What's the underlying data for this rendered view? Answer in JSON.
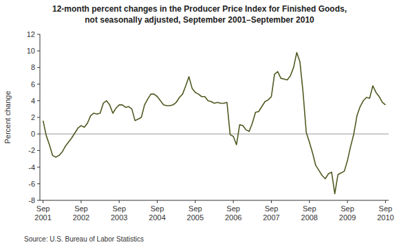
{
  "chart_data": {
    "type": "line",
    "title": "12-month percent changes in the Producer Price Index for Finished Goods,",
    "subtitle": "not seasonally adjusted, September 2001–September 2010",
    "y_label": "Percent change",
    "source": "Source: U.S. Bureau of Labor Statistics",
    "color": "#4d5a20",
    "grid": false,
    "ylim": [
      -8,
      12
    ],
    "yticks": [
      -8,
      -6,
      -4,
      -2,
      0,
      2,
      4,
      6,
      8,
      10,
      12
    ],
    "categories": [
      "Sep\n2001",
      null,
      null,
      null,
      null,
      null,
      null,
      null,
      null,
      null,
      null,
      null,
      "Sep\n2002",
      null,
      null,
      null,
      null,
      null,
      null,
      null,
      null,
      null,
      null,
      null,
      "Sep\n2003",
      null,
      null,
      null,
      null,
      null,
      null,
      null,
      null,
      null,
      null,
      null,
      "Sep\n2004",
      null,
      null,
      null,
      null,
      null,
      null,
      null,
      null,
      null,
      null,
      null,
      "Sep\n2005",
      null,
      null,
      null,
      null,
      null,
      null,
      null,
      null,
      null,
      null,
      null,
      "Sep\n2006",
      null,
      null,
      null,
      null,
      null,
      null,
      null,
      null,
      null,
      null,
      null,
      "Sep\n2007",
      null,
      null,
      null,
      null,
      null,
      null,
      null,
      null,
      null,
      null,
      null,
      "Sep\n2008",
      null,
      null,
      null,
      null,
      null,
      null,
      null,
      null,
      null,
      null,
      null,
      "Sep\n2009",
      null,
      null,
      null,
      null,
      null,
      null,
      null,
      null,
      null,
      null,
      null,
      "Sep\n2010"
    ],
    "values": [
      1.6,
      -0.2,
      -1.3,
      -2.6,
      -2.8,
      -2.6,
      -2.2,
      -1.5,
      -1.0,
      -0.5,
      0.1,
      0.7,
      1.0,
      0.8,
      1.3,
      2.2,
      2.5,
      2.4,
      2.5,
      3.7,
      4.0,
      3.5,
      2.5,
      3.1,
      3.5,
      3.5,
      3.2,
      3.3,
      3.0,
      1.6,
      1.8,
      2.0,
      3.5,
      4.2,
      4.8,
      4.8,
      4.5,
      4.0,
      3.5,
      3.4,
      3.4,
      3.5,
      3.8,
      4.4,
      4.8,
      5.8,
      6.9,
      5.5,
      5.0,
      4.8,
      4.5,
      4.5,
      4.0,
      3.9,
      3.7,
      3.8,
      3.7,
      3.7,
      3.8,
      -0.1,
      -0.3,
      -1.3,
      1.1,
      1.0,
      0.5,
      0.3,
      1.3,
      2.6,
      2.7,
      3.3,
      3.9,
      4.1,
      4.5,
      7.2,
      7.5,
      6.7,
      6.6,
      6.5,
      7.0,
      8.0,
      9.8,
      8.7,
      5.0,
      0.2,
      -1.0,
      -2.3,
      -3.8,
      -4.4,
      -5.0,
      -5.4,
      -4.8,
      -4.6,
      -7.2,
      -4.9,
      -4.7,
      -4.5,
      -3.2,
      -1.5,
      0.0,
      2.2,
      3.3,
      4.0,
      4.4,
      4.3,
      5.8,
      5.0,
      4.5,
      3.8,
      3.5
    ]
  }
}
